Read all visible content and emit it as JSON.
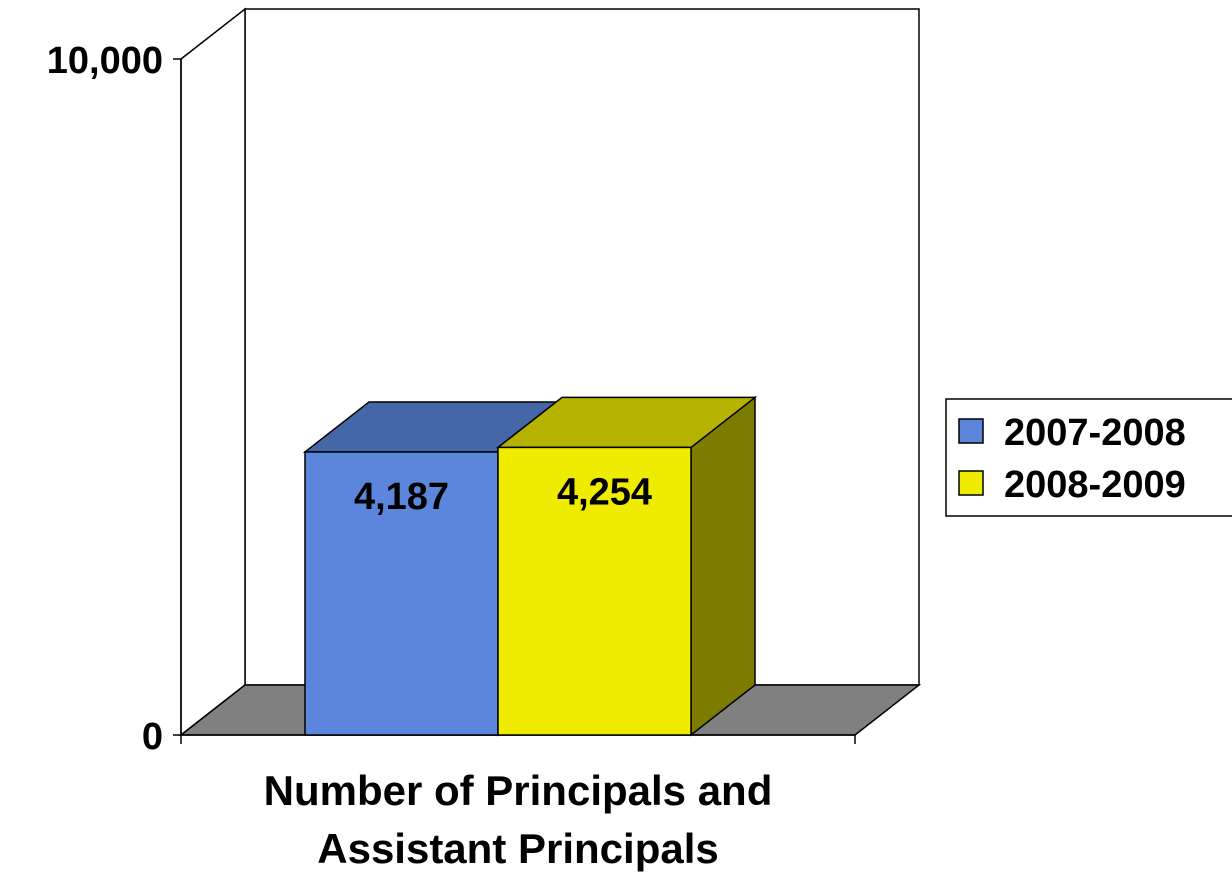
{
  "chart_data": {
    "type": "bar",
    "categories": [
      "Number of Principals and Assistant Principals"
    ],
    "xlabel_lines": [
      "Number of Principals and",
      "Assistant Principals"
    ],
    "series": [
      {
        "name": "2007-2008",
        "values": [
          4187
        ],
        "value_label": "4,187",
        "color": "#5b86dc"
      },
      {
        "name": "2008-2009",
        "values": [
          4254
        ],
        "value_label": "4,254",
        "color": "#f0ec00"
      }
    ],
    "ylim": [
      0,
      10000
    ],
    "yticks": [
      {
        "value": 0,
        "label": "0"
      },
      {
        "value": 10000,
        "label": "10,000"
      }
    ],
    "grid": false,
    "legend_position": "right",
    "three_d": true,
    "floor_color": "#808080"
  }
}
